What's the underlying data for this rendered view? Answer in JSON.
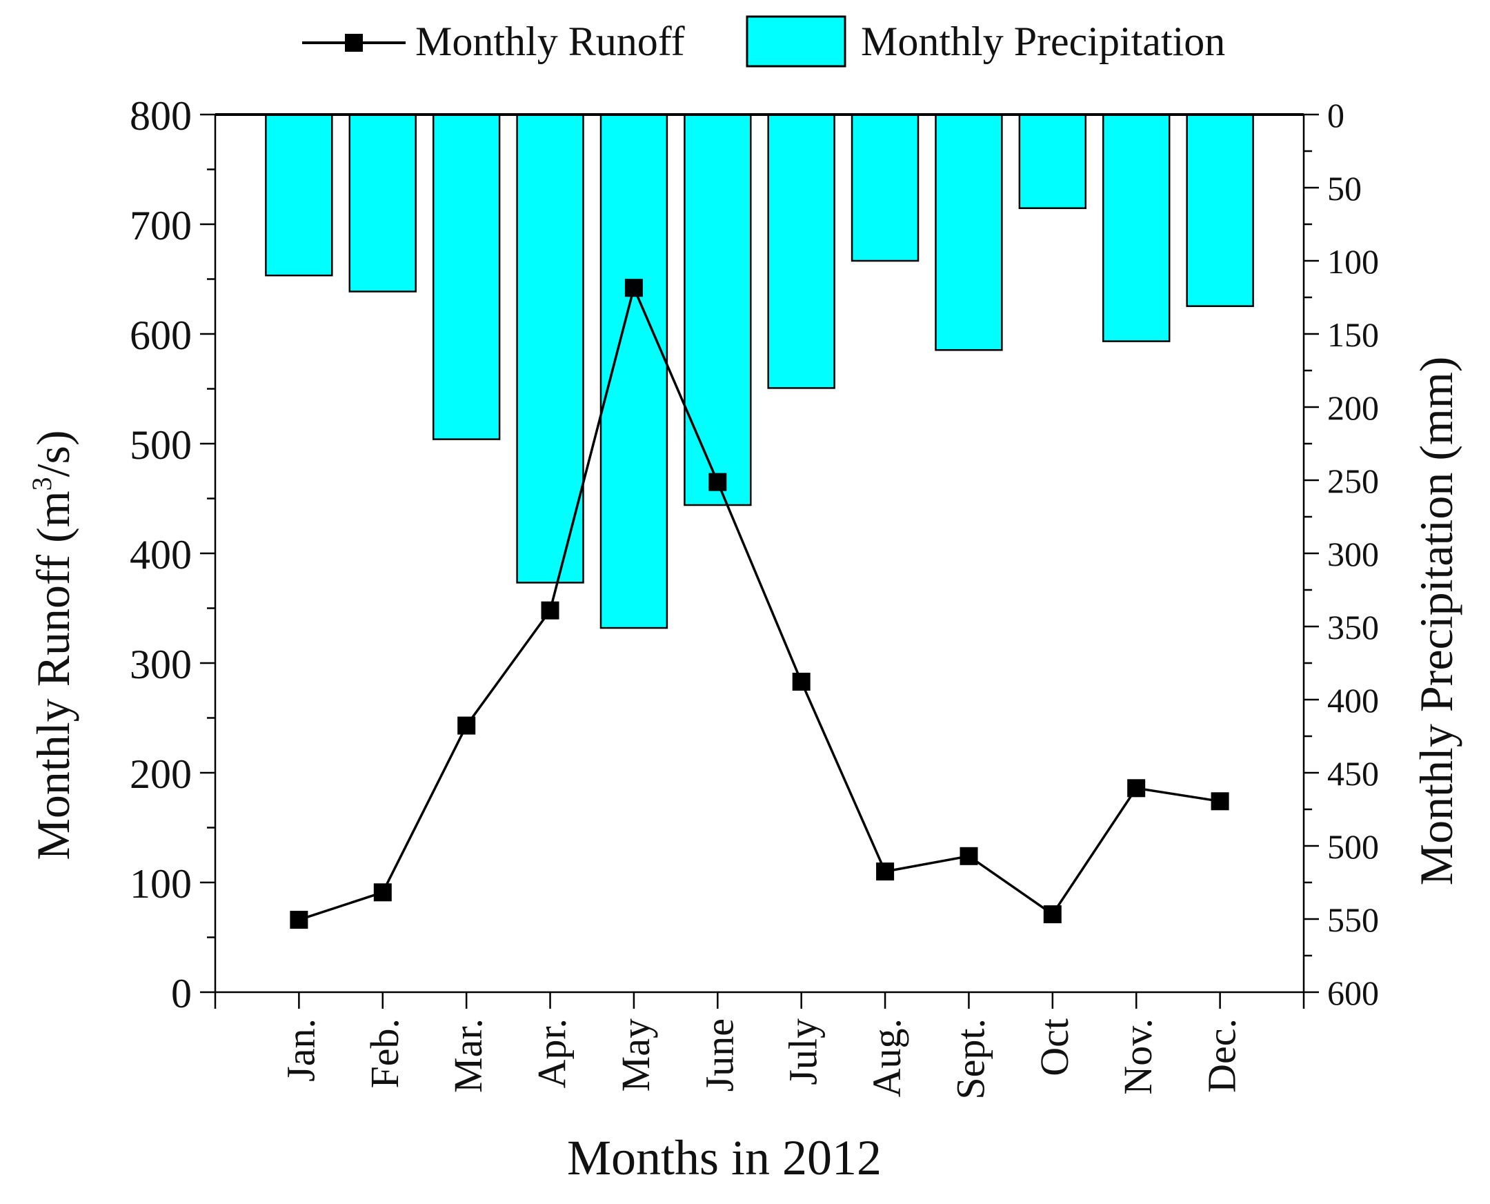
{
  "chart_data": {
    "type": "bar+line",
    "title": "",
    "xlabel": "Months in 2012",
    "categories": [
      "Jan.",
      "Feb.",
      "Mar.",
      "Apr.",
      "May",
      "June",
      "July",
      "Aug.",
      "Sept.",
      "Oct",
      "Nov.",
      "Dec."
    ],
    "left_axis": {
      "label_prefix": "Monthly Runoff (m",
      "label_superscript": "3",
      "label_suffix": "/s)",
      "ylim": [
        0,
        800
      ],
      "ticks": [
        "0",
        "100",
        "200",
        "300",
        "400",
        "500",
        "600",
        "700",
        "800"
      ]
    },
    "right_axis": {
      "label": "Monthly Precipitation (mm)",
      "ylim": [
        0,
        600
      ],
      "inverted": true,
      "ticks": [
        "0",
        "50",
        "100",
        "150",
        "200",
        "250",
        "300",
        "350",
        "400",
        "450",
        "500",
        "550",
        "600"
      ]
    },
    "series": [
      {
        "name": "Monthly Runoff",
        "type": "line",
        "axis": "left",
        "marker": "square",
        "color": "#000000",
        "values": [
          66,
          91,
          243,
          348,
          642,
          465,
          283,
          110,
          124,
          71,
          186,
          174
        ]
      },
      {
        "name": "Monthly Precipitation",
        "type": "bar",
        "axis": "right",
        "color": "#00ffff",
        "values": [
          110,
          121,
          222,
          320,
          351,
          267,
          187,
          100,
          161,
          64,
          155,
          131
        ]
      }
    ],
    "legend": {
      "position": "top",
      "items": [
        "Monthly Runoff",
        "Monthly Precipitation"
      ]
    }
  }
}
